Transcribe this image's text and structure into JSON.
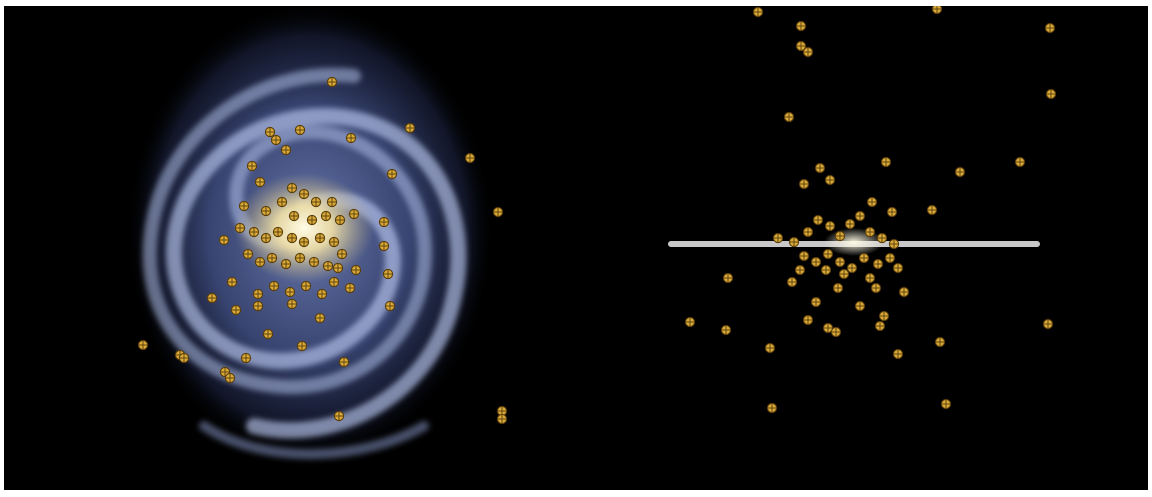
{
  "colors": {
    "space_background": "#000000",
    "frame": "#ffffff",
    "galaxy_core": "#fff3c4",
    "galaxy_arms": "#9fb0e0",
    "galaxy_halo": "#3a4a80",
    "cluster_fill": "#d9a93a",
    "cluster_stroke": "#5a3f0a",
    "disk_line": "#c8c8c8"
  },
  "icons": {
    "cluster_marker": "globular-cluster-icon",
    "galaxy_face_on": "spiral-galaxy-face-on",
    "galaxy_edge_on": "galaxy-disk-edge-on"
  }
}
